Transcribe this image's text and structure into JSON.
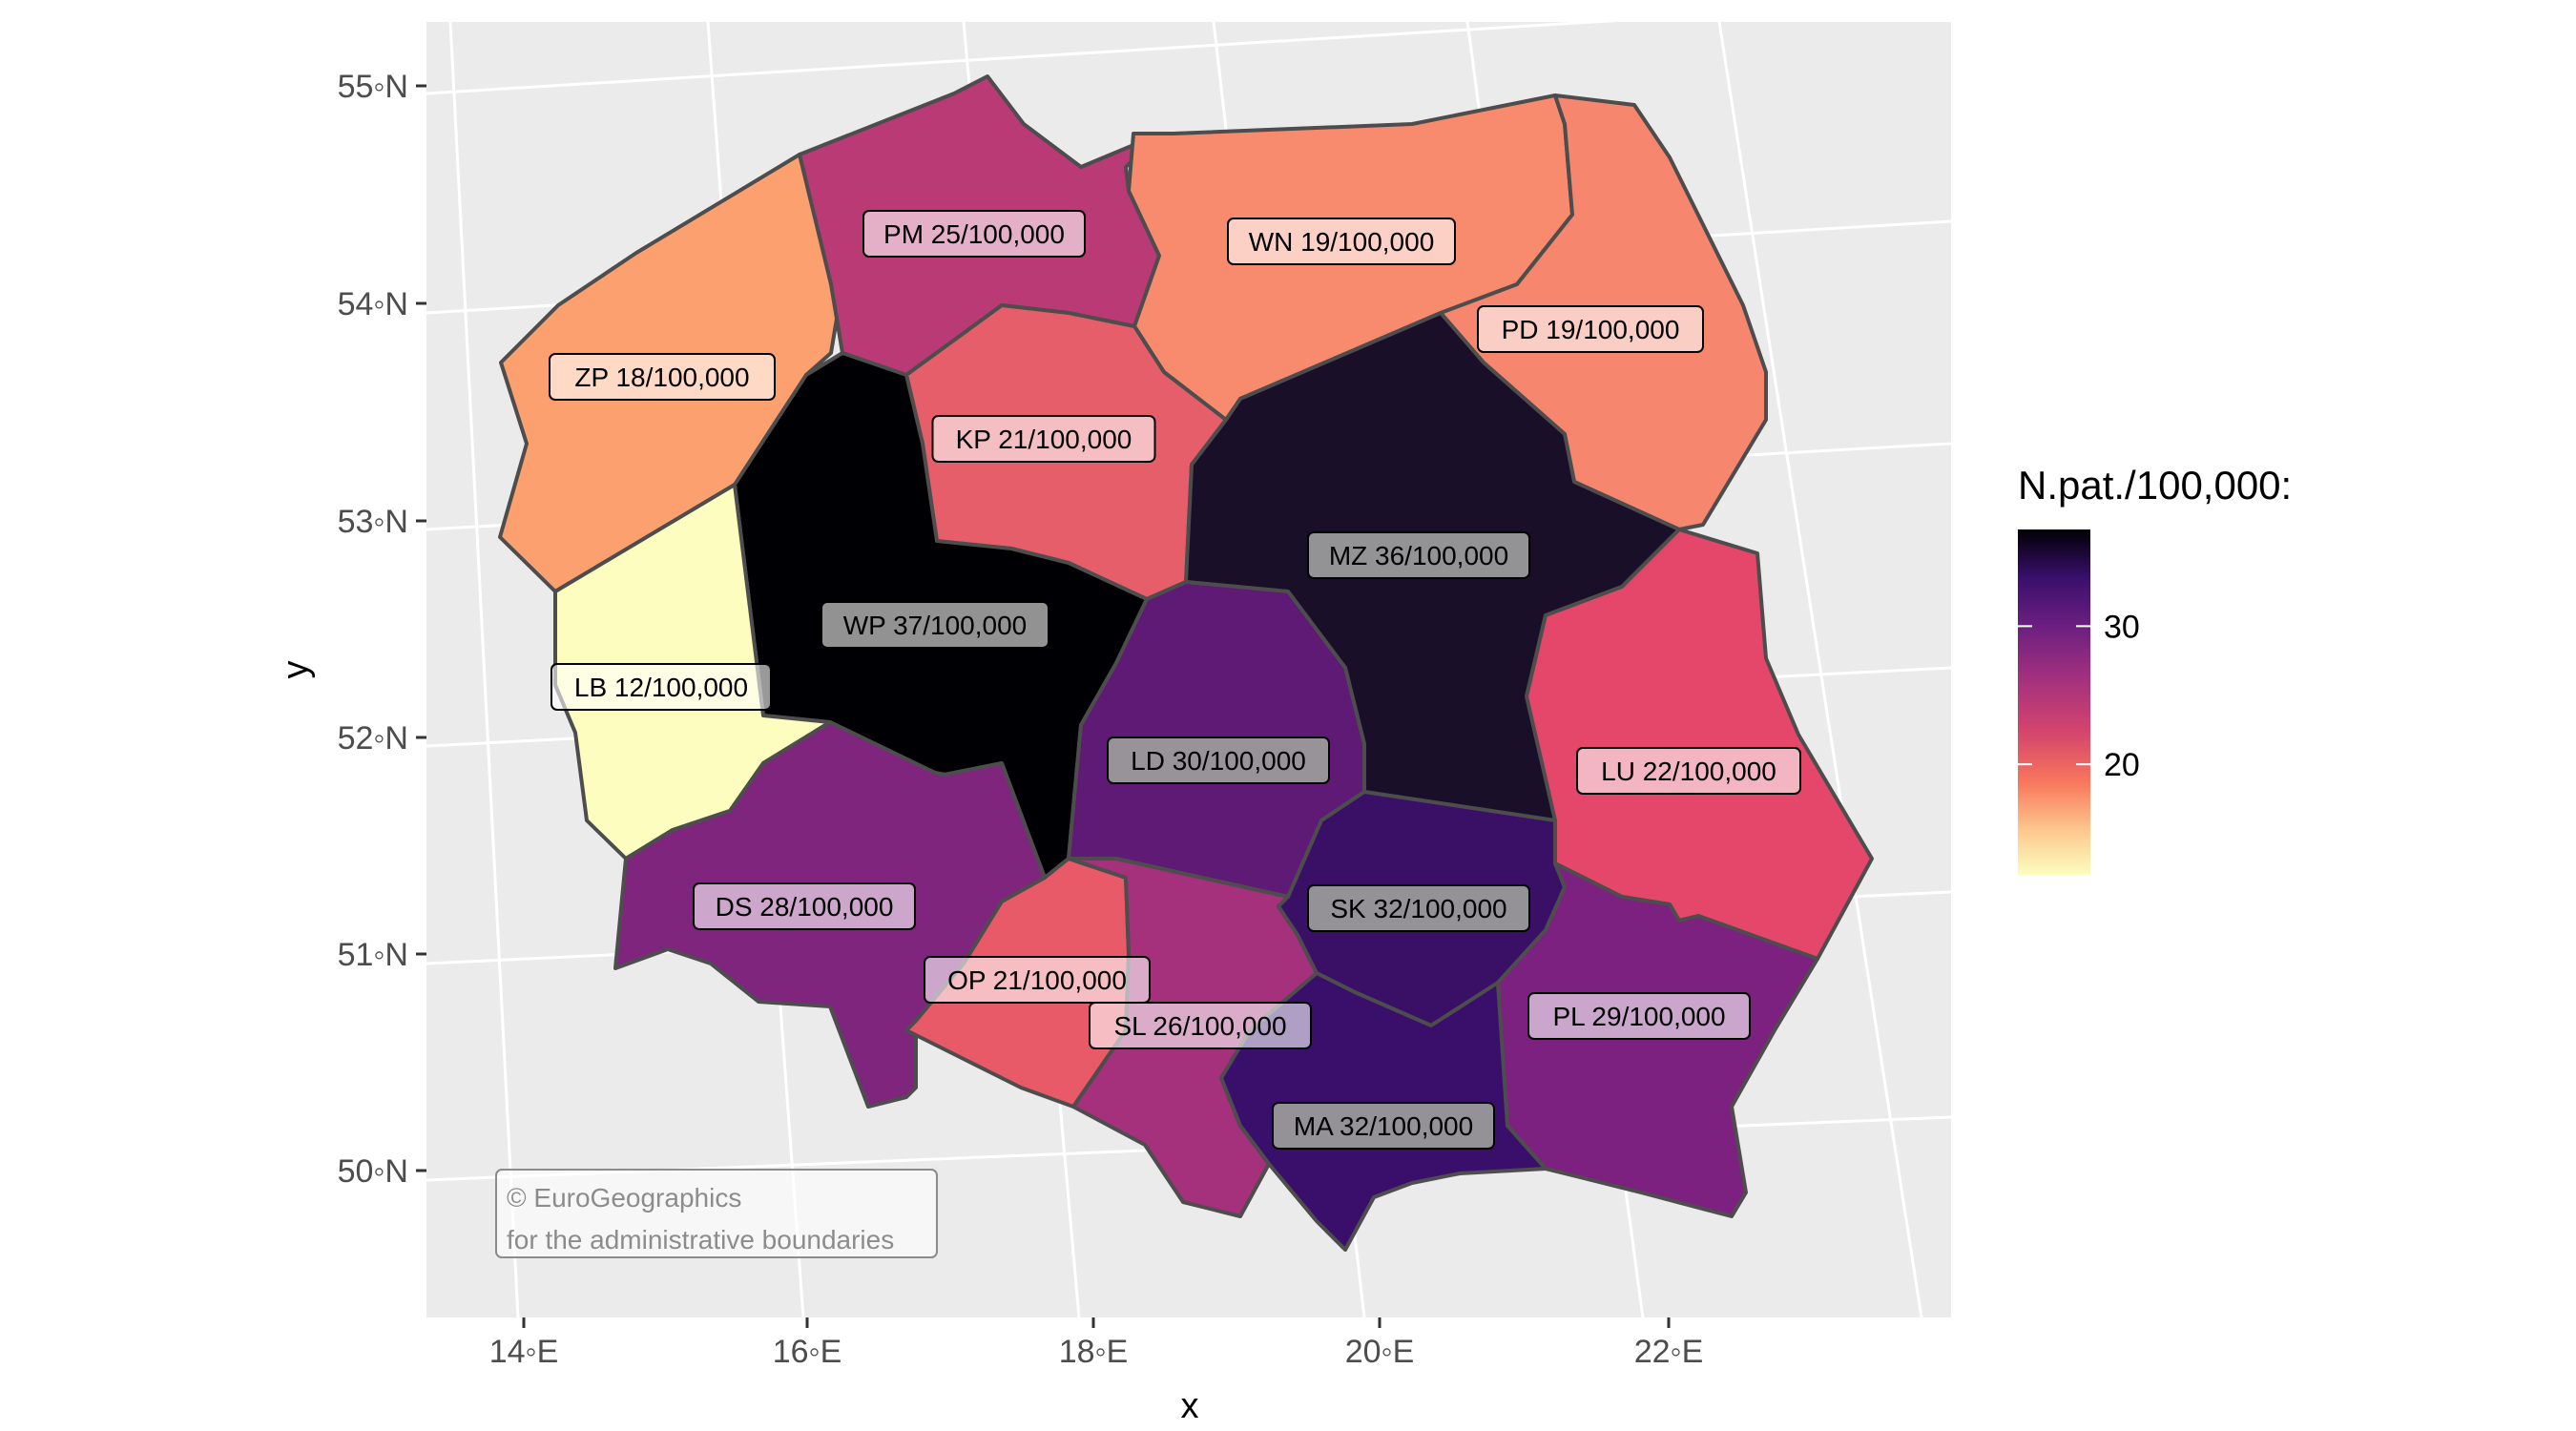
{
  "chart_data": {
    "type": "choropleth",
    "title": "",
    "xlabel": "x",
    "ylabel": "y",
    "x_ticks": [
      "14◦E",
      "16◦E",
      "18◦E",
      "20◦E",
      "22◦E"
    ],
    "y_ticks": [
      "50◦N",
      "51◦N",
      "52◦N",
      "53◦N",
      "54◦N",
      "55◦N"
    ],
    "grid": true,
    "legend": {
      "title": "N.pat./100,000:",
      "placement": "right",
      "range": [
        12,
        37
      ],
      "ticks": [
        20,
        30
      ]
    },
    "regions": [
      {
        "code": "ZP",
        "value": 18,
        "label": "ZP 18/100,000",
        "color": "#FCA06F"
      },
      {
        "code": "PM",
        "value": 25,
        "label": "PM 25/100,000",
        "color": "#B93A74"
      },
      {
        "code": "WN",
        "value": 19,
        "label": "WN 19/100,000",
        "color": "#F88A6D"
      },
      {
        "code": "PD",
        "value": 19,
        "label": "PD 19/100,000",
        "color": "#F6866E"
      },
      {
        "code": "KP",
        "value": 21,
        "label": "KP 21/100,000",
        "color": "#E55E69"
      },
      {
        "code": "MZ",
        "value": 36,
        "label": "MZ 36/100,000",
        "color": "#1A0F28"
      },
      {
        "code": "WP",
        "value": 37,
        "label": "WP 37/100,000",
        "color": "#000004"
      },
      {
        "code": "LB",
        "value": 12,
        "label": "LB 12/100,000",
        "color": "#FCFDBF"
      },
      {
        "code": "LD",
        "value": 30,
        "label": "LD 30/100,000",
        "color": "#5E1A75"
      },
      {
        "code": "LU",
        "value": 22,
        "label": "LU 22/100,000",
        "color": "#E4476A"
      },
      {
        "code": "DS",
        "value": 28,
        "label": "DS 28/100,000",
        "color": "#80257E"
      },
      {
        "code": "OP",
        "value": 21,
        "label": "OP 21/100,000",
        "color": "#E85A68"
      },
      {
        "code": "SL",
        "value": 26,
        "label": "SL 26/100,000",
        "color": "#A5307C"
      },
      {
        "code": "SK",
        "value": 32,
        "label": "SK 32/100,000",
        "color": "#3A1066"
      },
      {
        "code": "PL",
        "value": 29,
        "label": "PL 29/100,000",
        "color": "#7C2180"
      },
      {
        "code": "MA",
        "value": 32,
        "label": "MA 32/100,000",
        "color": "#3A0F6C"
      }
    ]
  },
  "credit": {
    "line1": "© EuroGeographics",
    "line2": "for the administrative boundaries"
  }
}
